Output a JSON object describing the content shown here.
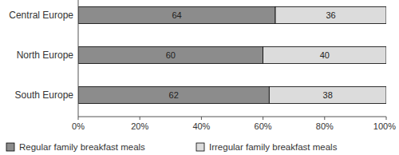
{
  "chart_data": {
    "type": "bar",
    "orientation": "horizontal",
    "stacked": true,
    "data_labels": true,
    "grid": false,
    "legend": "bottom",
    "categories": [
      "Central Europe",
      "North Europe",
      "South Europe"
    ],
    "series": [
      {
        "name": "Regular family breakfast meals",
        "color": "#8c8c8c",
        "values": [
          64,
          60,
          62
        ]
      },
      {
        "name": "Irregular family breakfast meals",
        "color": "#dcdcdc",
        "values": [
          36,
          40,
          38
        ]
      }
    ],
    "xlim": [
      0,
      100
    ],
    "xticks": [
      {
        "value": 0,
        "label": "0%"
      },
      {
        "value": 20,
        "label": "20%"
      },
      {
        "value": 40,
        "label": "40%"
      },
      {
        "value": 60,
        "label": "60%"
      },
      {
        "value": 80,
        "label": "80%"
      },
      {
        "value": 100,
        "label": "100%"
      }
    ]
  }
}
